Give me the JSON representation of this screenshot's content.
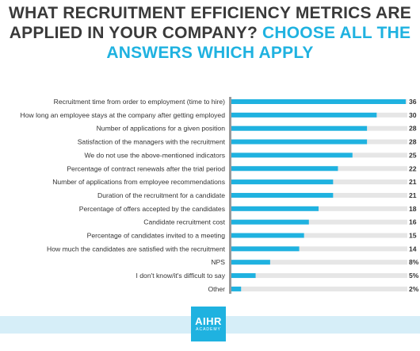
{
  "header": {
    "title_part1": "WHAT RECRUITMENT EFFICIENCY METRICS ARE",
    "title_part2": "APPLIED IN YOUR COMPANY?",
    "title_part3": "CHOOSE ALL THE",
    "title_part4": "ANSWERS WHICH APPLY"
  },
  "colors": {
    "accent": "#1fb2e0",
    "bar_track": "#e6e6e6",
    "title_dark": "#3a3a3a",
    "footer_band": "#d6eef8"
  },
  "chart_data": {
    "type": "bar",
    "orientation": "horizontal",
    "title": "WHAT RECRUITMENT EFFICIENCY METRICS ARE APPLIED IN YOUR COMPANY? CHOOSE ALL THE ANSWERS WHICH APPLY",
    "unit": "%",
    "xlim": [
      0,
      36
    ],
    "grid": false,
    "categories": [
      "Recruitment time from order to employment (time to hire)",
      "How long an employee stays at the company after getting employed",
      "Number of applications for a given position",
      "Satisfaction of the managers with the recruitment",
      "We do not use the above-mentioned indicators",
      "Percentage of contract renewals after the trial period",
      "Number of applications from employee recommendations",
      "Duration of the recruitment for a candidate",
      "Percentage of offers accepted by the candidates",
      "Candidate recruitment cost",
      "Percentage of candidates invited to a meeting",
      "How much the candidates are satisfied with the recruitment",
      "NPS",
      "I don't know/it's difficult to say",
      "Other"
    ],
    "values": [
      36,
      30,
      28,
      28,
      25,
      22,
      21,
      21,
      18,
      16,
      15,
      14,
      8,
      5,
      2
    ],
    "value_labels": [
      "36",
      "30",
      "28",
      "28",
      "25",
      "22",
      "21",
      "21",
      "18",
      "16",
      "15",
      "14",
      "8%",
      "5%",
      "2%"
    ]
  },
  "footer": {
    "logo_main": "AIHR",
    "logo_sub": "ACADEMY"
  }
}
